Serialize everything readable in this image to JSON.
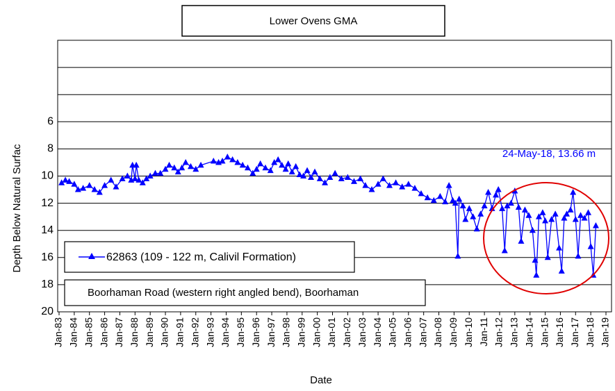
{
  "chart_data": {
    "type": "line",
    "title": "Lower Ovens GMA",
    "x_label": "Date",
    "y_label": "Depth Below Natural Surfac",
    "annotation": "24-May-18, 13.66 m",
    "location_note": "Boorhaman Road  (western right angled bend), Boorhaman",
    "y_inverted": true,
    "grid": true,
    "ylim": [
      0,
      20
    ],
    "yticks": [
      6,
      8,
      10,
      12,
      14,
      16,
      18,
      20
    ],
    "y_unlabeled_grid": [
      2,
      4
    ],
    "xlim": [
      "1983-01",
      "2019-01"
    ],
    "xticks": [
      {
        "value": "1983-01",
        "label": "Jan-83"
      },
      {
        "value": "1984-01",
        "label": "Jan-84"
      },
      {
        "value": "1985-01",
        "label": "Jan-85"
      },
      {
        "value": "1986-01",
        "label": "Jan-86"
      },
      {
        "value": "1987-01",
        "label": "Jan-87"
      },
      {
        "value": "1988-01",
        "label": "Jan-88"
      },
      {
        "value": "1989-01",
        "label": "Jan-89"
      },
      {
        "value": "1990-01",
        "label": "Jan-90"
      },
      {
        "value": "1991-01",
        "label": "Jan-91"
      },
      {
        "value": "1992-01",
        "label": "Jan-92"
      },
      {
        "value": "1993-01",
        "label": "Jan-93"
      },
      {
        "value": "1994-01",
        "label": "Jan-94"
      },
      {
        "value": "1995-01",
        "label": "Jan-95"
      },
      {
        "value": "1996-01",
        "label": "Jan-96"
      },
      {
        "value": "1997-01",
        "label": "Jan-97"
      },
      {
        "value": "1998-01",
        "label": "Jan-98"
      },
      {
        "value": "1999-01",
        "label": "Jan-99"
      },
      {
        "value": "2000-01",
        "label": "Jan-00"
      },
      {
        "value": "2001-01",
        "label": "Jan-01"
      },
      {
        "value": "2002-01",
        "label": "Jan-02"
      },
      {
        "value": "2003-01",
        "label": "Jan-03"
      },
      {
        "value": "2004-01",
        "label": "Jan-04"
      },
      {
        "value": "2005-01",
        "label": "Jan-05"
      },
      {
        "value": "2006-01",
        "label": "Jan-06"
      },
      {
        "value": "2007-01",
        "label": "Jan-07"
      },
      {
        "value": "2008-01",
        "label": "Jan-08"
      },
      {
        "value": "2009-01",
        "label": "Jan-09"
      },
      {
        "value": "2010-01",
        "label": "Jan-10"
      },
      {
        "value": "2011-01",
        "label": "Jan-11"
      },
      {
        "value": "2012-01",
        "label": "Jan-12"
      },
      {
        "value": "2013-01",
        "label": "Jan-13"
      },
      {
        "value": "2014-01",
        "label": "Jan-14"
      },
      {
        "value": "2015-01",
        "label": "Jan-15"
      },
      {
        "value": "2016-01",
        "label": "Jan-16"
      },
      {
        "value": "2017-01",
        "label": "Jan-17"
      },
      {
        "value": "2018-01",
        "label": "Jan-18"
      },
      {
        "value": "2019-01",
        "label": "Jan-19"
      }
    ],
    "x": [
      "1983-03",
      "1983-06",
      "1983-09",
      "1984-01",
      "1984-04",
      "1984-08",
      "1985-01",
      "1985-05",
      "1985-09",
      "1986-01",
      "1986-06",
      "1986-10",
      "1987-03",
      "1987-07",
      "1987-10",
      "1987-11",
      "1988-01",
      "1988-02",
      "1988-04",
      "1988-07",
      "1988-10",
      "1989-01",
      "1989-05",
      "1989-09",
      "1990-01",
      "1990-04",
      "1990-08",
      "1990-11",
      "1991-02",
      "1991-05",
      "1991-09",
      "1992-01",
      "1992-05",
      "1993-03",
      "1993-07",
      "1993-10",
      "1994-02",
      "1994-06",
      "1994-10",
      "1995-02",
      "1995-06",
      "1995-10",
      "1996-01",
      "1996-04",
      "1996-08",
      "1996-12",
      "1997-03",
      "1997-06",
      "1997-09",
      "1997-12",
      "1998-02",
      "1998-05",
      "1998-08",
      "1998-11",
      "1999-02",
      "1999-05",
      "1999-08",
      "1999-11",
      "2000-03",
      "2000-07",
      "2000-11",
      "2001-03",
      "2001-08",
      "2002-01",
      "2002-06",
      "2002-11",
      "2003-03",
      "2003-08",
      "2004-01",
      "2004-05",
      "2004-10",
      "2005-03",
      "2005-08",
      "2006-01",
      "2006-06",
      "2006-11",
      "2007-04",
      "2007-09",
      "2008-02",
      "2008-06",
      "2008-09",
      "2008-12",
      "2009-02",
      "2009-04",
      "2009-05",
      "2009-08",
      "2009-10",
      "2010-01",
      "2010-04",
      "2010-07",
      "2010-10",
      "2011-01",
      "2011-04",
      "2011-07",
      "2011-10",
      "2011-12",
      "2012-03",
      "2012-05",
      "2012-07",
      "2012-10",
      "2013-01",
      "2013-04",
      "2013-06",
      "2013-09",
      "2013-12",
      "2014-03",
      "2014-05",
      "2014-06",
      "2014-08",
      "2014-11",
      "2015-01",
      "2015-03",
      "2015-06",
      "2015-09",
      "2015-12",
      "2016-02",
      "2016-04",
      "2016-06",
      "2016-09",
      "2016-11",
      "2017-01",
      "2017-03",
      "2017-05",
      "2017-08",
      "2017-11",
      "2018-01",
      "2018-03",
      "2018-05"
    ],
    "series": [
      {
        "name": "62863 (109 - 122 m, Calivil Formation)",
        "color": "#0000ff",
        "values": [
          10.5,
          10.3,
          10.4,
          10.6,
          11.0,
          10.9,
          10.7,
          11.0,
          11.2,
          10.7,
          10.3,
          10.8,
          10.2,
          10.0,
          10.3,
          9.2,
          10.2,
          9.2,
          10.3,
          10.5,
          10.2,
          10.0,
          9.8,
          9.8,
          9.5,
          9.2,
          9.4,
          9.7,
          9.4,
          9.0,
          9.3,
          9.5,
          9.2,
          8.9,
          9.0,
          8.9,
          8.6,
          8.8,
          9.0,
          9.2,
          9.4,
          9.8,
          9.5,
          9.1,
          9.4,
          9.6,
          9.0,
          8.8,
          9.2,
          9.5,
          9.1,
          9.7,
          9.3,
          9.9,
          10.0,
          9.6,
          10.1,
          9.7,
          10.2,
          10.5,
          10.1,
          9.8,
          10.2,
          10.1,
          10.4,
          10.2,
          10.7,
          11.0,
          10.6,
          10.2,
          10.7,
          10.5,
          10.8,
          10.6,
          10.9,
          11.3,
          11.6,
          11.8,
          11.5,
          11.9,
          10.7,
          11.8,
          12.0,
          15.9,
          11.7,
          12.2,
          13.2,
          12.4,
          13.0,
          13.9,
          12.8,
          12.2,
          11.2,
          12.4,
          11.4,
          11.0,
          12.4,
          15.5,
          12.2,
          12.0,
          11.1,
          12.3,
          14.8,
          12.5,
          12.9,
          14.0,
          16.2,
          17.3,
          13.0,
          12.7,
          13.3,
          16.0,
          13.2,
          12.8,
          15.3,
          17.0,
          13.1,
          12.8,
          12.5,
          11.2,
          13.2,
          15.9,
          12.9,
          13.1,
          12.7,
          15.2,
          17.3,
          13.66
        ]
      }
    ]
  }
}
